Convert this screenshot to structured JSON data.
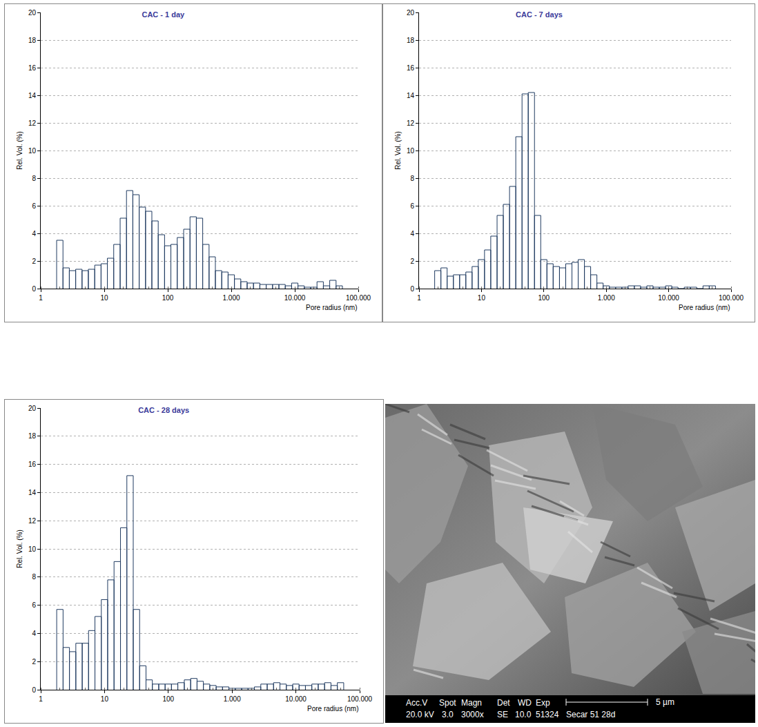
{
  "chart_data": [
    {
      "type": "histogram",
      "title": "CAC - 1 day",
      "x_label": "Pore radius (nm)",
      "y_label": "Rel. Vol. (%)",
      "log": "x",
      "grid": true,
      "color": "#1f3a60",
      "bins": [
        1.78,
        2.24,
        2.82,
        3.55,
        4.47,
        5.62,
        7.08,
        8.91,
        11.2,
        14.1,
        17.8,
        22.4,
        28.2,
        35.5,
        44.7,
        56.2,
        70.8,
        89.1,
        112,
        141,
        178,
        224,
        282,
        355,
        447,
        562,
        708,
        891,
        1122,
        1413,
        1778,
        2239,
        2818,
        3548,
        4467,
        5623,
        7079,
        8913,
        11220,
        14125,
        17783,
        22387,
        28184,
        35481,
        44668,
        56234
      ],
      "values": [
        3.5,
        1.5,
        1.3,
        1.4,
        1.3,
        1.4,
        1.7,
        1.8,
        2.2,
        3.2,
        5.1,
        7.1,
        6.8,
        5.9,
        5.6,
        4.9,
        3.9,
        3.1,
        3.2,
        3.7,
        4.3,
        5.2,
        5.1,
        3.2,
        2.3,
        1.3,
        1.2,
        1.0,
        0.7,
        0.5,
        0.4,
        0.4,
        0.3,
        0.3,
        0.3,
        0.3,
        0.2,
        0.4,
        0.2,
        0.1,
        0.1,
        0.5,
        0.2,
        0.6,
        0.2
      ],
      "xlim": [
        1,
        100000
      ],
      "xticks": [
        1,
        10,
        100,
        {
          "value": 1000,
          "label": "1.000"
        },
        {
          "value": 10000,
          "label": "10.000"
        },
        {
          "value": 100000,
          "label": "100.000"
        }
      ],
      "ylim": [
        0,
        20
      ],
      "yticks": [
        0,
        2,
        4,
        6,
        8,
        10,
        12,
        14,
        16,
        18,
        20
      ]
    },
    {
      "type": "histogram",
      "title": "CAC - 7 days",
      "x_label": "Pore radius (nm)",
      "y_label": "Rel. Vol. (%)",
      "log": "x",
      "grid": true,
      "color": "#1f3a60",
      "bins": [
        1.78,
        2.24,
        2.82,
        3.55,
        4.47,
        5.62,
        7.08,
        8.91,
        11.2,
        14.1,
        17.8,
        22.4,
        28.2,
        35.5,
        44.7,
        56.2,
        70.8,
        89.1,
        112,
        141,
        178,
        224,
        282,
        355,
        447,
        562,
        708,
        891,
        1122,
        1413,
        1778,
        2239,
        2818,
        3548,
        4467,
        5623,
        7079,
        8913,
        11220,
        14125,
        17783,
        22387,
        28184,
        35481,
        44668,
        56234
      ],
      "values": [
        1.3,
        1.5,
        0.9,
        1.0,
        1.0,
        1.2,
        1.6,
        2.1,
        2.8,
        3.8,
        5.3,
        6.1,
        7.4,
        11.0,
        14.1,
        14.2,
        5.3,
        2.1,
        1.8,
        1.6,
        1.5,
        1.8,
        1.9,
        2.1,
        1.6,
        1.0,
        0.4,
        0.2,
        0.1,
        0.1,
        0.1,
        0.2,
        0.2,
        0.1,
        0.2,
        0.1,
        0.1,
        0.2,
        0.1,
        0.0,
        0.1,
        0.1,
        0.0,
        0.2,
        0.2
      ],
      "xlim": [
        1,
        100000
      ],
      "xticks": [
        1,
        10,
        100,
        {
          "value": 1000,
          "label": "1.000"
        },
        {
          "value": 10000,
          "label": "10.000"
        },
        {
          "value": 100000,
          "label": "100.000"
        }
      ],
      "ylim": [
        0,
        20
      ],
      "yticks": [
        0,
        2,
        4,
        6,
        8,
        10,
        12,
        14,
        16,
        18,
        20
      ]
    },
    {
      "type": "histogram",
      "title": "CAC - 28 days",
      "x_label": "Pore radius (nm)",
      "y_label": "Rel. Vol. (%)",
      "log": "x",
      "grid": true,
      "color": "#1f3a60",
      "bins": [
        1.78,
        2.24,
        2.82,
        3.55,
        4.47,
        5.62,
        7.08,
        8.91,
        11.2,
        14.1,
        17.8,
        22.4,
        28.2,
        35.5,
        44.7,
        56.2,
        70.8,
        89.1,
        112,
        141,
        178,
        224,
        282,
        355,
        447,
        562,
        708,
        891,
        1122,
        1413,
        1778,
        2239,
        2818,
        3548,
        4467,
        5623,
        7079,
        8913,
        11220,
        14125,
        17783,
        22387,
        28184,
        35481,
        44668,
        56234
      ],
      "values": [
        5.7,
        3.0,
        2.7,
        3.3,
        3.3,
        4.2,
        5.2,
        6.4,
        7.8,
        9.1,
        11.5,
        15.2,
        5.7,
        1.7,
        0.7,
        0.4,
        0.4,
        0.4,
        0.4,
        0.5,
        0.7,
        0.8,
        0.6,
        0.4,
        0.3,
        0.2,
        0.2,
        0.1,
        0.1,
        0.1,
        0.1,
        0.2,
        0.4,
        0.4,
        0.5,
        0.4,
        0.3,
        0.4,
        0.3,
        0.3,
        0.4,
        0.4,
        0.5,
        0.3,
        0.5
      ],
      "xlim": [
        1,
        100000
      ],
      "xticks": [
        1,
        10,
        100,
        {
          "value": 1000,
          "label": "1.000"
        },
        {
          "value": 10000,
          "label": "10.000"
        },
        {
          "value": 100000,
          "label": "100.000"
        }
      ],
      "ylim": [
        0,
        20
      ],
      "yticks": [
        0,
        2,
        4,
        6,
        8,
        10,
        12,
        14,
        16,
        18,
        20
      ]
    }
  ],
  "image": {
    "info_header": [
      "Acc.V",
      "Spot",
      "Magn",
      "Det",
      "WD",
      "Exp"
    ],
    "info_values": [
      "20.0 kV",
      "3.0",
      "3000x",
      "SE",
      "10.0",
      "51324",
      "Secar 51 28d"
    ],
    "scale_bar": "5 µm"
  }
}
